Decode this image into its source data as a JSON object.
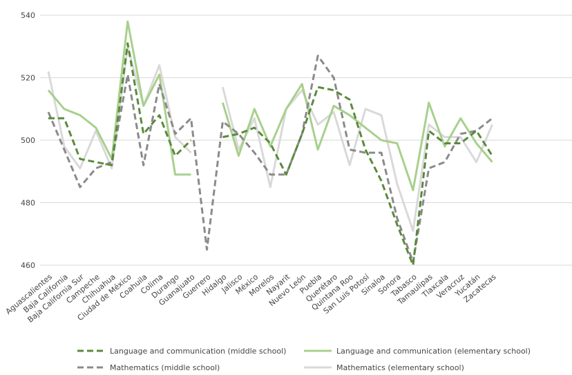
{
  "chart_data": {
    "type": "line",
    "categories": [
      "Aguascalientes",
      "Baja California",
      "Baja California Sur",
      "Campeche",
      "Chihuahua",
      "Ciudad de México",
      "Coahuila",
      "Colima",
      "Durango",
      "Guanajuato",
      "Guerrero",
      "Hidalgo",
      "Jalisco",
      "México",
      "Morelos",
      "Nayarit",
      "Nuevo León",
      "Puebla",
      "Querétaro",
      "Quintana Roo",
      "San Luis Potosí",
      "Sinaloa",
      "Sonora",
      "Tabasco",
      "Tamaulipas",
      "Tlaxcala",
      "Veracruz",
      "Yucatán",
      "Zacatecas"
    ],
    "ylim": [
      460,
      540
    ],
    "yticks": [
      460,
      480,
      500,
      520,
      540
    ],
    "grid": true,
    "legend_position": "bottom",
    "series": [
      {
        "name": "Language and communication (middle school)",
        "color": "#5a8a3c",
        "dash": "dashed",
        "values": [
          507,
          507,
          494,
          493,
          492,
          531,
          502,
          508,
          495,
          500,
          null,
          501,
          502,
          504,
          499,
          489,
          502,
          517,
          516,
          513,
          497,
          487,
          473,
          460,
          503,
          499,
          499,
          503,
          495
        ]
      },
      {
        "name": "Language and communication (elementary school)",
        "color": "#a8d08d",
        "dash": "solid",
        "values": [
          516,
          510,
          508,
          504,
          494,
          538,
          511,
          521,
          489,
          489,
          null,
          512,
          495,
          510,
          498,
          510,
          518,
          497,
          511,
          508,
          504,
          500,
          499,
          484,
          512,
          498,
          507,
          499,
          493
        ]
      },
      {
        "name": "Mathematics (middle school)",
        "color": "#8a8a8a",
        "dash": "dashed",
        "values": [
          509,
          497,
          485,
          491,
          493,
          521,
          492,
          518,
          502,
          507,
          465,
          506,
          502,
          496,
          489,
          489,
          502,
          527,
          520,
          497,
          496,
          496,
          475,
          461,
          491,
          493,
          502,
          503,
          507
        ]
      },
      {
        "name": "Mathematics (elementary school)",
        "color": "#d9d9d9",
        "dash": "solid",
        "values": [
          522,
          498,
          491,
          503,
          491,
          530,
          511,
          524,
          501,
          496,
          null,
          517,
          497,
          507,
          485,
          510,
          516,
          505,
          509,
          492,
          510,
          508,
          486,
          471,
          505,
          501,
          501,
          493,
          505
        ]
      }
    ]
  }
}
